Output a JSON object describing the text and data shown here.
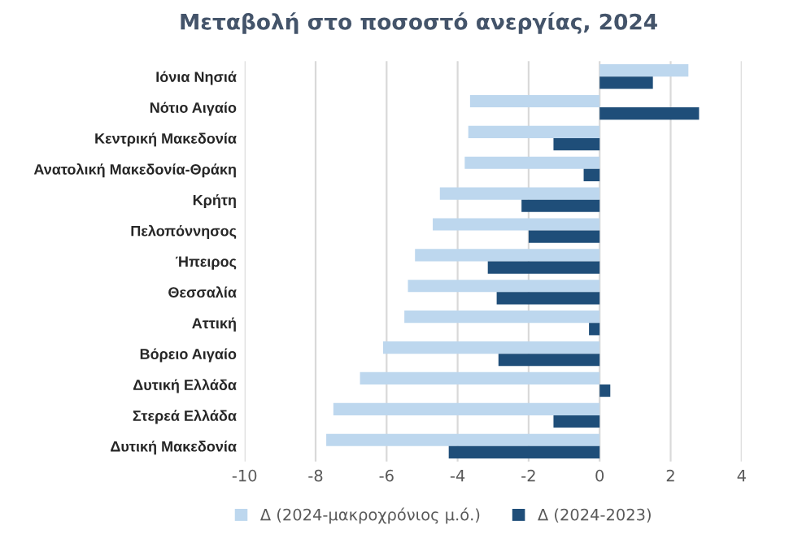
{
  "chart_data": {
    "type": "bar",
    "orientation": "horizontal",
    "title": "Μεταβολή στο ποσοστό ανεργίας, 2024",
    "categories": [
      "Ιόνια Νησιά",
      "Νότιο Αιγαίο",
      "Κεντρική Μακεδονία",
      "Ανατολική Μακεδονία-Θράκη",
      "Κρήτη",
      "Πελοπόννησος",
      "Ήπειρος",
      "Θεσσαλία",
      "Αττική",
      "Βόρειο Αιγαίο",
      "Δυτική Ελλάδα",
      "Στερεά Ελλάδα",
      "Δυτική Μακεδονία"
    ],
    "series": [
      {
        "name": "Δ (2024-μακροχρόνιος μ.ό.)",
        "color": "#bdd7ee",
        "values": [
          2.5,
          -3.65,
          -3.7,
          -3.8,
          -4.5,
          -4.7,
          -5.2,
          -5.4,
          -5.5,
          -6.1,
          -6.75,
          -7.5,
          -7.7
        ]
      },
      {
        "name": "Δ (2024-2023)",
        "color": "#1f4e79",
        "values": [
          1.5,
          2.8,
          -1.3,
          -0.45,
          -2.2,
          -2.0,
          -3.15,
          -2.9,
          -0.3,
          -2.85,
          0.3,
          -1.3,
          -4.25
        ]
      }
    ],
    "xlim": [
      -10,
      4
    ],
    "xticks": [
      -10,
      -8,
      -6,
      -4,
      -2,
      0,
      2,
      4
    ],
    "grid": "x",
    "legend": "bottom"
  }
}
